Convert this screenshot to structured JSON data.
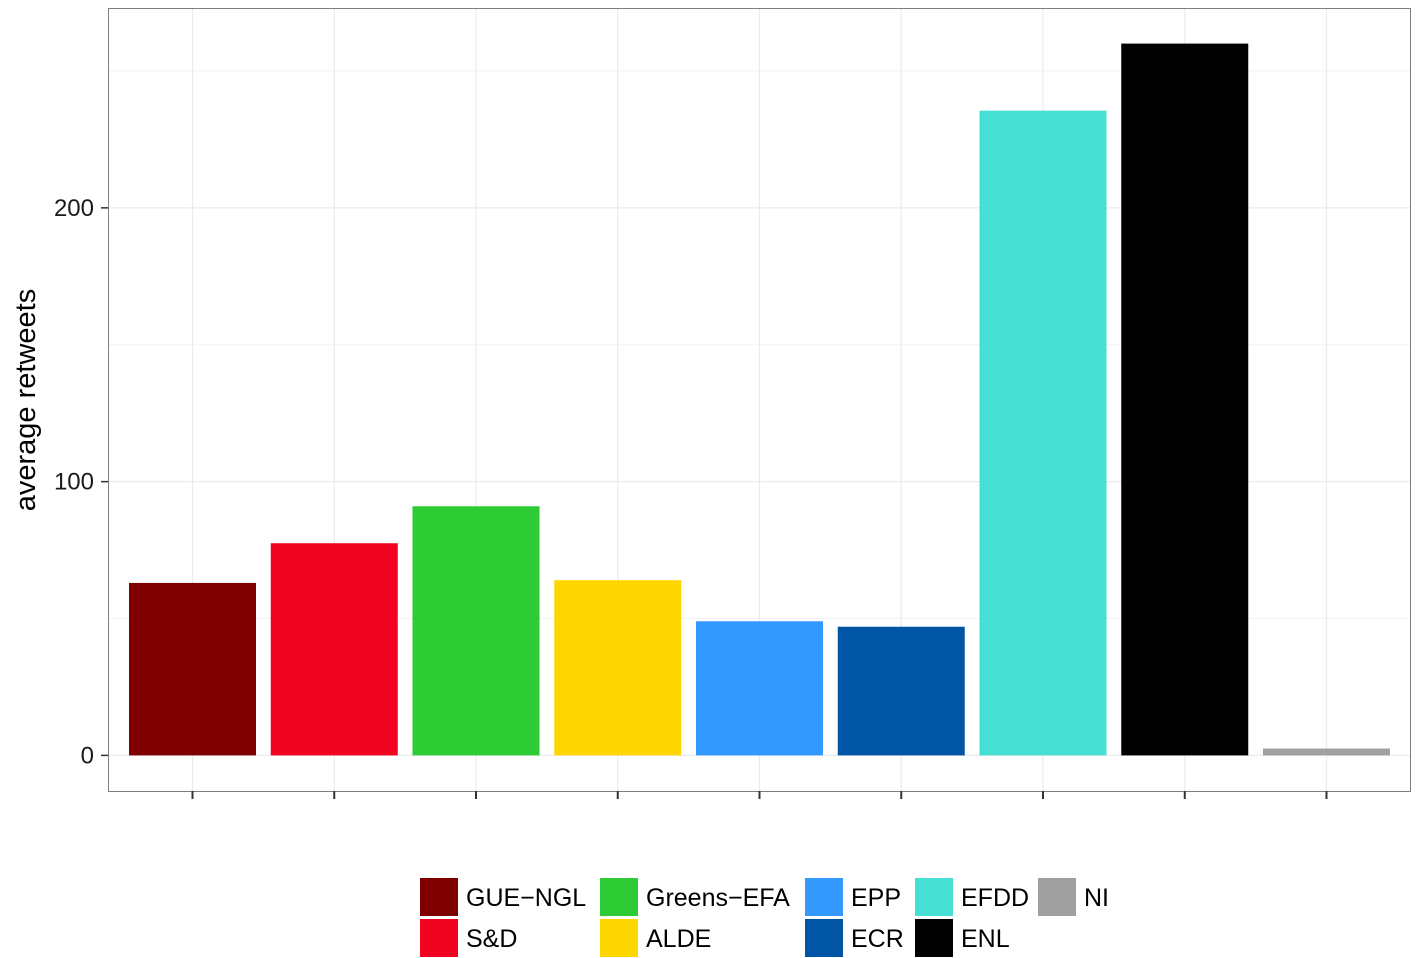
{
  "chart_data": {
    "type": "bar",
    "title": "",
    "xlabel": "",
    "ylabel": "average retweets",
    "ylim": [
      -13,
      273
    ],
    "y_ticks": [
      0,
      100,
      200
    ],
    "y_tick_labels": [
      "0",
      "100",
      "200"
    ],
    "x_tick_labels": [
      "",
      "",
      "",
      "",
      "",
      "",
      "",
      "",
      ""
    ],
    "grid": true,
    "legend_position": "bottom",
    "categories": [
      "GUE-NGL",
      "S&D",
      "Greens-EFA",
      "ALDE",
      "EPP",
      "ECR",
      "EFDD",
      "ENL",
      "NI"
    ],
    "legend_labels": [
      "GUE−NGL",
      "S&D",
      "Greens−EFA",
      "ALDE",
      "EPP",
      "ECR",
      "EFDD",
      "ENL",
      "NI"
    ],
    "values": [
      63,
      77.5,
      91,
      64,
      49,
      47,
      235.5,
      260,
      2.5
    ],
    "colors": [
      "#7F0000",
      "#F0041F",
      "#2ECC34",
      "#FED700",
      "#3399FF",
      "#0055A4",
      "#45E0D3",
      "#000000",
      "#A0A0A0"
    ]
  }
}
